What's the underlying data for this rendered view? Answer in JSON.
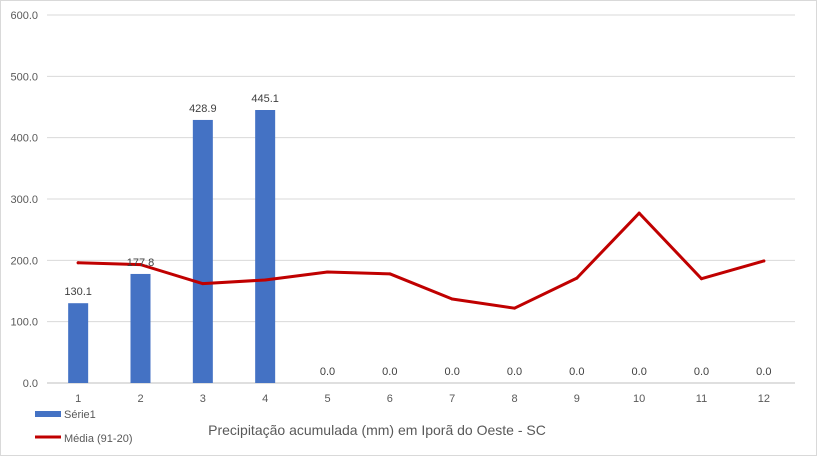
{
  "chart_data": {
    "type": "bar",
    "categories": [
      "1",
      "2",
      "3",
      "4",
      "5",
      "6",
      "7",
      "8",
      "9",
      "10",
      "11",
      "12"
    ],
    "series": [
      {
        "name": "Série1",
        "kind": "bar",
        "color": "#4472c4",
        "values": [
          130.1,
          177.8,
          428.9,
          445.1,
          0.0,
          0.0,
          0.0,
          0.0,
          0.0,
          0.0,
          0.0,
          0.0
        ],
        "labels": [
          "130.1",
          "177.8",
          "428.9",
          "445.1",
          "0.0",
          "0.0",
          "0.0",
          "0.0",
          "0.0",
          "0.0",
          "0.0",
          "0.0"
        ]
      },
      {
        "name": "Média (91-20)",
        "kind": "line",
        "color": "#c00000",
        "values": [
          196,
          193,
          162,
          168,
          181,
          178,
          137,
          122,
          171,
          277,
          170,
          199
        ]
      }
    ],
    "title": "",
    "xlabel": "Precipitação acumulada (mm)  em Iporã do Oeste - SC",
    "ylabel": "",
    "ylim": [
      0,
      600
    ],
    "yticks": [
      "0.0",
      "100.0",
      "200.0",
      "300.0",
      "400.0",
      "500.0",
      "600.0"
    ],
    "grid": true,
    "legend_position": "bottom-left"
  }
}
